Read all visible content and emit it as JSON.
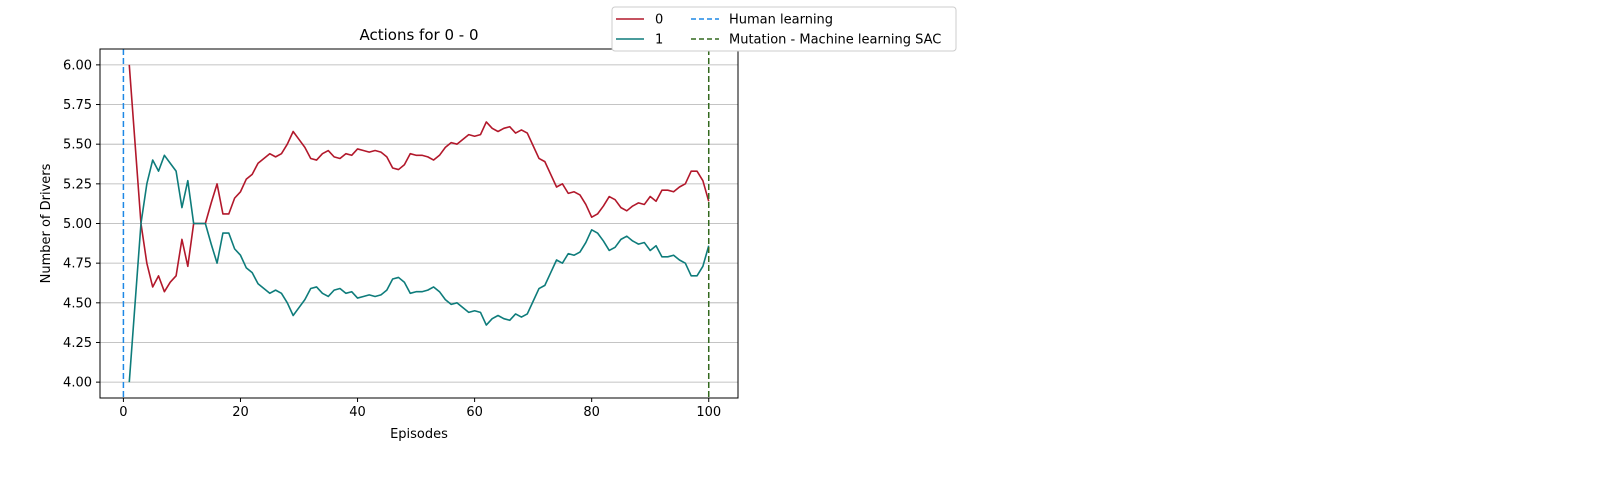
{
  "chart_data": {
    "type": "line",
    "title": "Actions for 0 - 0",
    "xlabel": "Episodes",
    "ylabel": "Number of Drivers",
    "xlim": [
      -4,
      105
    ],
    "ylim": [
      3.9,
      6.1
    ],
    "xticks": [
      0,
      20,
      40,
      60,
      80,
      100
    ],
    "yticks": [
      4.0,
      4.25,
      4.5,
      4.75,
      5.0,
      5.25,
      5.5,
      5.75,
      6.0
    ],
    "ytick_labels": [
      "4.00",
      "4.25",
      "4.50",
      "4.75",
      "5.00",
      "5.25",
      "5.50",
      "5.75",
      "6.00"
    ],
    "grid": "horizontal",
    "legend_placement": "top-right, outside plot",
    "x": [
      1,
      2,
      3,
      4,
      5,
      6,
      7,
      8,
      9,
      10,
      11,
      12,
      13,
      14,
      15,
      16,
      17,
      18,
      19,
      20,
      21,
      22,
      23,
      24,
      25,
      26,
      27,
      28,
      29,
      30,
      31,
      32,
      33,
      34,
      35,
      36,
      37,
      38,
      39,
      40,
      41,
      42,
      43,
      44,
      45,
      46,
      47,
      48,
      49,
      50,
      51,
      52,
      53,
      54,
      55,
      56,
      57,
      58,
      59,
      60,
      61,
      62,
      63,
      64,
      65,
      66,
      67,
      68,
      69,
      70,
      71,
      72,
      73,
      74,
      75,
      76,
      77,
      78,
      79,
      80,
      81,
      82,
      83,
      84,
      85,
      86,
      87,
      88,
      89,
      90,
      91,
      92,
      93,
      94,
      95,
      96,
      97,
      98,
      99,
      100
    ],
    "series": [
      {
        "name": "0",
        "color": "#b2182b",
        "values": [
          6.0,
          5.5,
          5.0,
          4.75,
          4.6,
          4.67,
          4.57,
          4.63,
          4.67,
          4.9,
          4.73,
          5.0,
          5.0,
          5.0,
          5.13,
          5.25,
          5.06,
          5.06,
          5.16,
          5.2,
          5.28,
          5.31,
          5.38,
          5.41,
          5.44,
          5.42,
          5.44,
          5.5,
          5.58,
          5.53,
          5.48,
          5.41,
          5.4,
          5.44,
          5.46,
          5.42,
          5.41,
          5.44,
          5.43,
          5.47,
          5.46,
          5.45,
          5.46,
          5.45,
          5.42,
          5.35,
          5.34,
          5.37,
          5.44,
          5.43,
          5.43,
          5.42,
          5.4,
          5.43,
          5.48,
          5.51,
          5.5,
          5.53,
          5.56,
          5.55,
          5.56,
          5.64,
          5.6,
          5.58,
          5.6,
          5.61,
          5.57,
          5.59,
          5.57,
          5.49,
          5.41,
          5.39,
          5.31,
          5.23,
          5.25,
          5.19,
          5.2,
          5.18,
          5.12,
          5.04,
          5.06,
          5.11,
          5.17,
          5.15,
          5.1,
          5.08,
          5.11,
          5.13,
          5.12,
          5.17,
          5.14,
          5.21,
          5.21,
          5.2,
          5.23,
          5.25,
          5.33,
          5.33,
          5.27,
          5.14
        ]
      },
      {
        "name": "1",
        "color": "#0e7c7b",
        "values": [
          4.0,
          4.5,
          5.0,
          5.25,
          5.4,
          5.33,
          5.43,
          5.38,
          5.33,
          5.1,
          5.27,
          5.0,
          5.0,
          5.0,
          4.87,
          4.75,
          4.94,
          4.94,
          4.84,
          4.8,
          4.72,
          4.69,
          4.62,
          4.59,
          4.56,
          4.58,
          4.56,
          4.5,
          4.42,
          4.47,
          4.52,
          4.59,
          4.6,
          4.56,
          4.54,
          4.58,
          4.59,
          4.56,
          4.57,
          4.53,
          4.54,
          4.55,
          4.54,
          4.55,
          4.58,
          4.65,
          4.66,
          4.63,
          4.56,
          4.57,
          4.57,
          4.58,
          4.6,
          4.57,
          4.52,
          4.49,
          4.5,
          4.47,
          4.44,
          4.45,
          4.44,
          4.36,
          4.4,
          4.42,
          4.4,
          4.39,
          4.43,
          4.41,
          4.43,
          4.51,
          4.59,
          4.61,
          4.69,
          4.77,
          4.75,
          4.81,
          4.8,
          4.82,
          4.88,
          4.96,
          4.94,
          4.89,
          4.83,
          4.85,
          4.9,
          4.92,
          4.89,
          4.87,
          4.88,
          4.83,
          4.86,
          4.79,
          4.79,
          4.8,
          4.77,
          4.75,
          4.67,
          4.67,
          4.73,
          4.86
        ]
      }
    ],
    "vlines": [
      {
        "name": "Human learning",
        "x": 0,
        "color": "#1e88e5",
        "style": "dashed"
      },
      {
        "name": "Mutation - Machine learning SAC",
        "x": 100,
        "color": "#33691e",
        "style": "dashed"
      }
    ]
  }
}
